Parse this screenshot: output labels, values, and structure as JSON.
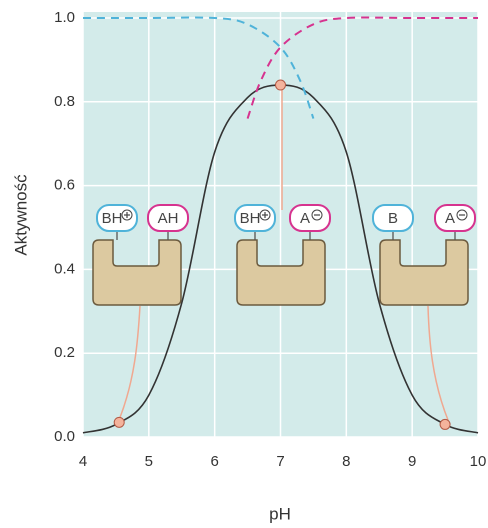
{
  "chart_data": {
    "type": "line",
    "xlabel": "pH",
    "ylabel": "Aktywność",
    "xlim": [
      4,
      10
    ],
    "ylim": [
      0,
      1
    ],
    "xticks": [
      4,
      5,
      6,
      7,
      8,
      9,
      10
    ],
    "yticks": [
      {
        "value": 0,
        "label": "0.0"
      },
      0.2,
      0.4,
      0.6,
      0.8,
      {
        "value": 1,
        "label": "1.0"
      }
    ],
    "grid": true,
    "background": "#d3ebea",
    "series": [
      {
        "color": "#333333",
        "dashed": false,
        "x": [
          4,
          4.5,
          5,
          5.5,
          6,
          6.5,
          7,
          7.5,
          8,
          8.5,
          9,
          9.5,
          10
        ],
        "values": [
          0.01,
          0.03,
          0.1,
          0.32,
          0.68,
          0.81,
          0.84,
          0.81,
          0.68,
          0.32,
          0.1,
          0.03,
          0.01
        ]
      },
      {
        "color": "#4fb3d9",
        "dashed": true,
        "x": [
          4,
          5,
          6,
          6.5,
          7,
          7.3,
          7.5
        ],
        "values": [
          1.0,
          1.0,
          1.0,
          0.985,
          0.93,
          0.85,
          0.76
        ]
      },
      {
        "color": "#d6338f",
        "dashed": true,
        "x": [
          6.5,
          6.7,
          7,
          7.5,
          8,
          9,
          10
        ],
        "values": [
          0.76,
          0.85,
          0.93,
          0.985,
          1.0,
          1.0,
          1.0
        ]
      }
    ],
    "points": {
      "color": "#f4b39c",
      "x": [
        4.55,
        7,
        9.5
      ],
      "values": [
        0.035,
        0.84,
        0.03
      ]
    },
    "annotations": [
      "BH",
      "AH",
      "BH",
      "A",
      "B",
      "A"
    ]
  }
}
